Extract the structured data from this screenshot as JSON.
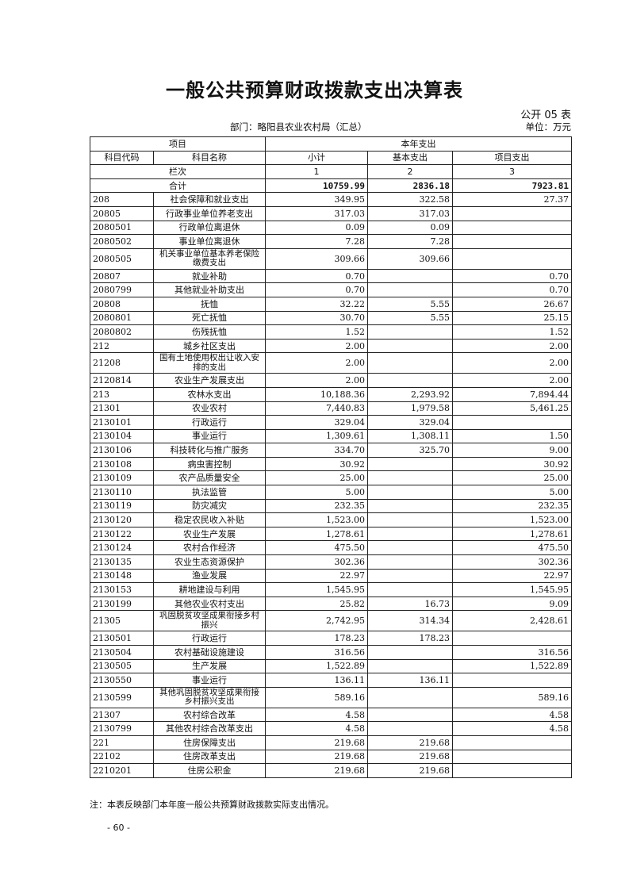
{
  "title": "一般公共预算财政拨款支出决算表",
  "table_no": "公开 05 表",
  "department": "部门：略阳县农业农村局（汇总）",
  "unit": "单位：万元",
  "header": {
    "item": "项目",
    "current_year": "本年支出",
    "code": "科目代码",
    "name": "科目名称",
    "subtotal": "小计",
    "basic": "基本支出",
    "project": "项目支出",
    "column_no": "栏次",
    "col1": "1",
    "col2": "2",
    "col3": "3"
  },
  "total": {
    "label": "合计",
    "subtotal": "10759.99",
    "basic": "2836.18",
    "project": "7923.81"
  },
  "rows": [
    {
      "code": "208",
      "name": "社会保障和就业支出",
      "subtotal": "349.95",
      "basic": "322.58",
      "project": "27.37"
    },
    {
      "code": "20805",
      "name": "行政事业单位养老支出",
      "subtotal": "317.03",
      "basic": "317.03",
      "project": ""
    },
    {
      "code": "2080501",
      "name": "行政单位离退休",
      "subtotal": "0.09",
      "basic": "0.09",
      "project": ""
    },
    {
      "code": "2080502",
      "name": "事业单位离退休",
      "subtotal": "7.28",
      "basic": "7.28",
      "project": ""
    },
    {
      "code": "2080505",
      "name": "机关事业单位基本养老保险缴费支出",
      "subtotal": "309.66",
      "basic": "309.66",
      "project": ""
    },
    {
      "code": "20807",
      "name": "就业补助",
      "subtotal": "0.70",
      "basic": "",
      "project": "0.70"
    },
    {
      "code": "2080799",
      "name": "其他就业补助支出",
      "subtotal": "0.70",
      "basic": "",
      "project": "0.70"
    },
    {
      "code": "20808",
      "name": "抚恤",
      "subtotal": "32.22",
      "basic": "5.55",
      "project": "26.67"
    },
    {
      "code": "2080801",
      "name": "死亡抚恤",
      "subtotal": "30.70",
      "basic": "5.55",
      "project": "25.15"
    },
    {
      "code": "2080802",
      "name": "伤残抚恤",
      "subtotal": "1.52",
      "basic": "",
      "project": "1.52"
    },
    {
      "code": "212",
      "name": "城乡社区支出",
      "subtotal": "2.00",
      "basic": "",
      "project": "2.00"
    },
    {
      "code": "21208",
      "name": "国有土地使用权出让收入安排的支出",
      "subtotal": "2.00",
      "basic": "",
      "project": "2.00"
    },
    {
      "code": "2120814",
      "name": "农业生产发展支出",
      "subtotal": "2.00",
      "basic": "",
      "project": "2.00"
    },
    {
      "code": "213",
      "name": "农林水支出",
      "subtotal": "10,188.36",
      "basic": "2,293.92",
      "project": "7,894.44"
    },
    {
      "code": "21301",
      "name": "农业农村",
      "subtotal": "7,440.83",
      "basic": "1,979.58",
      "project": "5,461.25"
    },
    {
      "code": "2130101",
      "name": "行政运行",
      "subtotal": "329.04",
      "basic": "329.04",
      "project": ""
    },
    {
      "code": "2130104",
      "name": "事业运行",
      "subtotal": "1,309.61",
      "basic": "1,308.11",
      "project": "1.50"
    },
    {
      "code": "2130106",
      "name": "科技转化与推广服务",
      "subtotal": "334.70",
      "basic": "325.70",
      "project": "9.00"
    },
    {
      "code": "2130108",
      "name": "病虫害控制",
      "subtotal": "30.92",
      "basic": "",
      "project": "30.92"
    },
    {
      "code": "2130109",
      "name": "农产品质量安全",
      "subtotal": "25.00",
      "basic": "",
      "project": "25.00"
    },
    {
      "code": "2130110",
      "name": "执法监管",
      "subtotal": "5.00",
      "basic": "",
      "project": "5.00"
    },
    {
      "code": "2130119",
      "name": "防灾减灾",
      "subtotal": "232.35",
      "basic": "",
      "project": "232.35"
    },
    {
      "code": "2130120",
      "name": "稳定农民收入补贴",
      "subtotal": "1,523.00",
      "basic": "",
      "project": "1,523.00"
    },
    {
      "code": "2130122",
      "name": "农业生产发展",
      "subtotal": "1,278.61",
      "basic": "",
      "project": "1,278.61"
    },
    {
      "code": "2130124",
      "name": "农村合作经济",
      "subtotal": "475.50",
      "basic": "",
      "project": "475.50"
    },
    {
      "code": "2130135",
      "name": "农业生态资源保护",
      "subtotal": "302.36",
      "basic": "",
      "project": "302.36"
    },
    {
      "code": "2130148",
      "name": "渔业发展",
      "subtotal": "22.97",
      "basic": "",
      "project": "22.97"
    },
    {
      "code": "2130153",
      "name": "耕地建设与利用",
      "subtotal": "1,545.95",
      "basic": "",
      "project": "1,545.95"
    },
    {
      "code": "2130199",
      "name": "其他农业农村支出",
      "subtotal": "25.82",
      "basic": "16.73",
      "project": "9.09"
    },
    {
      "code": "21305",
      "name": "巩固脱贫攻坚成果衔接乡村振兴",
      "subtotal": "2,742.95",
      "basic": "314.34",
      "project": "2,428.61"
    },
    {
      "code": "2130501",
      "name": "行政运行",
      "subtotal": "178.23",
      "basic": "178.23",
      "project": ""
    },
    {
      "code": "2130504",
      "name": "农村基础设施建设",
      "subtotal": "316.56",
      "basic": "",
      "project": "316.56"
    },
    {
      "code": "2130505",
      "name": "生产发展",
      "subtotal": "1,522.89",
      "basic": "",
      "project": "1,522.89"
    },
    {
      "code": "2130550",
      "name": "事业运行",
      "subtotal": "136.11",
      "basic": "136.11",
      "project": ""
    },
    {
      "code": "2130599",
      "name": "其他巩固脱贫攻坚成果衔接乡村振兴支出",
      "subtotal": "589.16",
      "basic": "",
      "project": "589.16"
    },
    {
      "code": "21307",
      "name": "农村综合改革",
      "subtotal": "4.58",
      "basic": "",
      "project": "4.58"
    },
    {
      "code": "2130799",
      "name": "其他农村综合改革支出",
      "subtotal": "4.58",
      "basic": "",
      "project": "4.58"
    },
    {
      "code": "221",
      "name": "住房保障支出",
      "subtotal": "219.68",
      "basic": "219.68",
      "project": ""
    },
    {
      "code": "22102",
      "name": "住房改革支出",
      "subtotal": "219.68",
      "basic": "219.68",
      "project": ""
    },
    {
      "code": "2210201",
      "name": "住房公积金",
      "subtotal": "219.68",
      "basic": "219.68",
      "project": ""
    }
  ],
  "note": "注：本表反映部门本年度一般公共预算财政拨款实际支出情况。",
  "page_number": "- 60 -"
}
